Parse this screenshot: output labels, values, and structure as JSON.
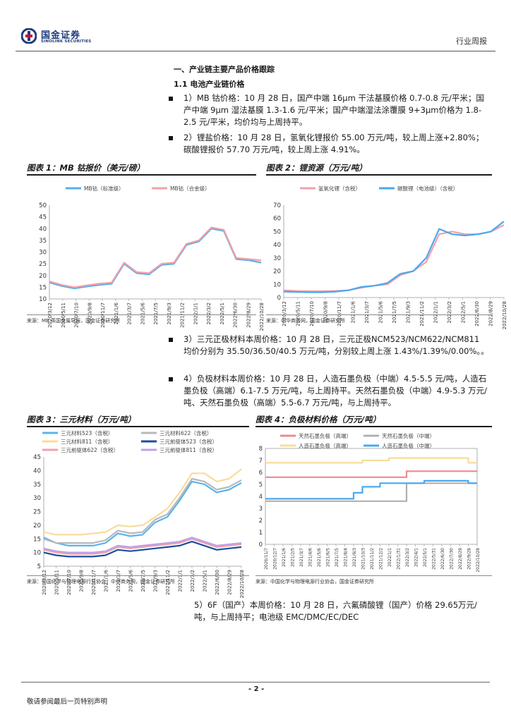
{
  "header": {
    "logo_cn": "国金证券",
    "logo_en": "SINOLINK SECURITIES",
    "report_type": "行业周报"
  },
  "section": {
    "h1": "一、产业链主要产品价格跟踪",
    "h2": "1.1 电池产业链价格"
  },
  "paragraphs": {
    "p1": "1）MB 钴价格：10 月 28 日，国产中端 16μm 干法基膜价格 0.7-0.8 元/平米；国产中端 9μm 湿法基膜 1.3-1.6 元/平米；国产中端湿法涂覆膜 9+3μm价格为 1.8-2.5 元/平米，均价均与上周持平。",
    "p2": "2）锂盐价格：10 月 28 日，氢氧化锂报价 55.00 万元/吨，较上周上涨+2.80%；碳酸锂报价 57.70 万元/吨，较上周上涨 4.91%。",
    "p3": "3）三元正极材料本周价格：10 月 28 日，三元正极NCM523/NCM622/NCM811 均价分别为 35.50/36.50/40.5 万元/吨，分别较上周上涨 1.43%/1.39%/0.00%。。",
    "p4": "4）负极材料本周价格：10 月 28 日，人造石墨负极（中端）4.5-5.5 元/吨，人造石墨负极（高端）6.1-7.5 万元/吨，与上周持平。天然石墨负极（中端）4.9-5.3 万元/吨、天然石墨负极（高端）5.5-6.7 万元/吨，与上周持平。",
    "p5": "5）6F（国产）本周价格：10 月 28 日，六氟磷酸锂（国产）价格 29.65万元/吨，与上周持平；电池级 EMC/DMC/EC/DEC"
  },
  "figures": {
    "fig1": {
      "title": "图表 1：MB 钴报价（美元/磅）",
      "source": "来源：MB 英国金属导报，国金证券研究所"
    },
    "fig2": {
      "title": "图表 2：锂资源（万元/吨）",
      "source": "来源：中华商务网，国金证券研究所"
    },
    "fig3": {
      "title": "图表 3：三元材料（万元/吨）",
      "source": "来源：中国化学与物理电源行业协会，中华商务网，国金证券研究所"
    },
    "fig4": {
      "title": "图表 4：负极材料价格（万元/吨）",
      "source": "来源：中国化学与物理电源行业协会，国金证券研究所"
    }
  },
  "footer": {
    "page": "- 2 -",
    "note": "敬请参阅最后一页特别声明"
  },
  "chart_data": [
    {
      "id": "fig1",
      "type": "line",
      "title": "MB 钴报价（美元/磅）",
      "ylim": [
        10,
        50
      ],
      "yticks": [
        10,
        15,
        20,
        25,
        30,
        35,
        40,
        45,
        50
      ],
      "xticks": [
        "2020/3/12",
        "2020/5/11",
        "2020/7/10",
        "2020/9/8",
        "2020/11/7",
        "2021/1/6",
        "2021/3/7",
        "2021/5/6",
        "2021/7/5",
        "2021/9/3",
        "2021/11/2",
        "2022/1/1",
        "2022/3/2",
        "2022/5/1",
        "2022/6/30",
        "2022/8/29",
        "2022/10/28"
      ],
      "series": [
        {
          "name": "MB钴（标准级）",
          "color": "#5aaee8",
          "values": [
            17,
            15.5,
            14.5,
            15.3,
            16,
            16.5,
            25,
            21,
            20.5,
            24.5,
            25,
            33,
            34.5,
            40,
            39,
            27,
            26.5,
            25.5
          ]
        },
        {
          "name": "MB钴（合金级）",
          "color": "#f2a0a8",
          "values": [
            17.5,
            16,
            15,
            15.8,
            16.5,
            17,
            25.5,
            21.5,
            21,
            25,
            25.5,
            33.5,
            35,
            40.5,
            39.5,
            27.5,
            27,
            26.5
          ]
        }
      ]
    },
    {
      "id": "fig2",
      "type": "line",
      "title": "锂资源（万元/吨）",
      "ylim": [
        0,
        70
      ],
      "yticks": [
        0,
        10,
        20,
        30,
        40,
        50,
        60,
        70
      ],
      "xticks": [
        "2020/3/12",
        "2020/5/11",
        "2020/7/10",
        "2020/9/8",
        "2020/11/7",
        "2021/1/6",
        "2021/3/7",
        "2021/5/6",
        "2021/7/5",
        "2021/9/3",
        "2021/11/2",
        "2022/1/1",
        "2022/3/2",
        "2022/5/1",
        "2022/6/30",
        "2022/8/29",
        "2022/10/28"
      ],
      "series": [
        {
          "name": "氢氧化锂（含税）",
          "color": "#f2a0a8",
          "values": [
            5.5,
            5,
            4.8,
            4.8,
            5,
            5.5,
            7.5,
            9,
            10,
            17,
            20,
            27,
            48,
            50,
            48,
            48,
            50,
            55
          ]
        },
        {
          "name": "碳酸锂（电池级）（含税）",
          "color": "#4aa8f0",
          "values": [
            4.5,
            4.2,
            4,
            4,
            4.5,
            5.5,
            8,
            9,
            11,
            18,
            20,
            30,
            52,
            48,
            47,
            48,
            50,
            57.7
          ]
        }
      ]
    },
    {
      "id": "fig3",
      "type": "line",
      "title": "三元材料（万元/吨）",
      "ylim": [
        5,
        45
      ],
      "yticks": [
        5,
        10,
        15,
        20,
        25,
        30,
        35,
        40,
        45
      ],
      "xticks": [
        "2020/3/12",
        "2020/5/11",
        "2020/7/10",
        "2020/9/8",
        "2020/11/7",
        "2021/1/6",
        "2021/3/7",
        "2021/5/6",
        "2021/7/5",
        "2021/9/3",
        "2021/11/2",
        "2022/1/1",
        "2022/3/2",
        "2022/5/1",
        "2022/6/30",
        "2022/8/29",
        "2022/10/28"
      ],
      "series": [
        {
          "name": "三元材料523（含税）",
          "color": "#5ab4ec",
          "values": [
            15.5,
            13.5,
            12.5,
            12.5,
            12.5,
            13.5,
            17,
            16,
            16.5,
            21,
            23,
            29,
            36,
            35,
            32,
            33,
            35.5
          ]
        },
        {
          "name": "三元材料622（含税）",
          "color": "#b8b8b8",
          "values": [
            15,
            13.5,
            13.5,
            13.5,
            13.5,
            14.5,
            18,
            17,
            17.5,
            22,
            24,
            30,
            37,
            36,
            33,
            34,
            36.5
          ]
        },
        {
          "name": "三元材料811（含税）",
          "color": "#f8dc9c",
          "values": [
            17.5,
            16.5,
            16.5,
            16.5,
            17,
            17.5,
            20,
            19.5,
            20,
            23,
            26,
            32,
            39,
            39,
            36,
            37,
            40.5
          ]
        },
        {
          "name": "三元前驱体523（含税）",
          "color": "#1a4ea0",
          "values": [
            10,
            9,
            8.5,
            8.5,
            8.5,
            9,
            11,
            10.5,
            11,
            11.5,
            12,
            12.5,
            14,
            12.5,
            11,
            11.5,
            12
          ]
        },
        {
          "name": "三元前驱体622（含税）",
          "color": "#f2a0a8",
          "values": [
            11,
            10,
            9.5,
            9.5,
            9.5,
            10,
            12,
            11.5,
            12,
            12.5,
            13,
            13.5,
            15,
            13.5,
            12,
            12.5,
            13
          ]
        },
        {
          "name": "三元前驱体811（含税）",
          "color": "#c0a0e8",
          "values": [
            11.5,
            10.5,
            10,
            10,
            10,
            10.5,
            12.5,
            12,
            12.5,
            13,
            13.5,
            14,
            15.5,
            14,
            12.5,
            13,
            13.5
          ]
        }
      ]
    },
    {
      "id": "fig4",
      "type": "line",
      "title": "负极材料价格（万元/吨）",
      "ylim": [
        0,
        8
      ],
      "yticks": [
        0,
        1,
        2,
        3,
        4,
        5,
        6,
        7,
        8
      ],
      "xticks": [
        "2020/11/7",
        "2020/12/7",
        "2021/1/6",
        "2021/2/5",
        "2021/3/7",
        "2021/4/6",
        "2021/5/6",
        "2021/6/5",
        "2021/7/5",
        "2021/8/4",
        "2021/9/3",
        "2021/10/3",
        "2021/11/2",
        "2021/12/2",
        "2022/1/1",
        "2022/1/31",
        "2022/3/2",
        "2022/4/1",
        "2022/5/1",
        "2022/5/31",
        "2022/6/30",
        "2022/7/30",
        "2022/8/29",
        "2022/9/28",
        "2022/10/28"
      ],
      "series": [
        {
          "name": "天然石墨负极（高端）",
          "color": "#f08890",
          "values": [
            5.6,
            5.6,
            5.6,
            5.6,
            5.6,
            5.6,
            5.6,
            5.6,
            5.6,
            5.6,
            5.6,
            5.6,
            5.6,
            5.6,
            5.6,
            5.6,
            6.1,
            6.1,
            6.1,
            6.1,
            6.1,
            6.1,
            6.1,
            6.1,
            6.1
          ]
        },
        {
          "name": "天然石墨负极（中端）",
          "color": "#b0b0b0",
          "values": [
            3.6,
            3.6,
            3.6,
            3.6,
            3.6,
            3.6,
            3.6,
            3.6,
            3.6,
            3.6,
            3.6,
            3.6,
            3.6,
            3.6,
            3.6,
            3.6,
            5.1,
            5.1,
            5.1,
            5.1,
            5.1,
            5.1,
            5.1,
            5.1,
            5.1
          ]
        },
        {
          "name": "人造石墨负极（高端）",
          "color": "#f8dc9c",
          "values": [
            6.8,
            6.8,
            6.8,
            6.8,
            6.8,
            6.8,
            6.8,
            6.8,
            6.8,
            6.8,
            6.8,
            7,
            7,
            7,
            7.2,
            7.2,
            7.2,
            7.2,
            7.2,
            7.2,
            7.2,
            7.2,
            7.2,
            6.8,
            6.8
          ]
        },
        {
          "name": "人造石墨负极（中端）",
          "color": "#4aa8f0",
          "values": [
            3.8,
            3.8,
            3.8,
            3.8,
            3.8,
            3.8,
            3.8,
            3.8,
            3.8,
            3.8,
            4.3,
            4.8,
            4.8,
            5.1,
            5.1,
            5.1,
            5.1,
            5.1,
            5.3,
            5.3,
            5.3,
            5.3,
            5.3,
            5.1,
            5.1
          ]
        }
      ]
    }
  ]
}
